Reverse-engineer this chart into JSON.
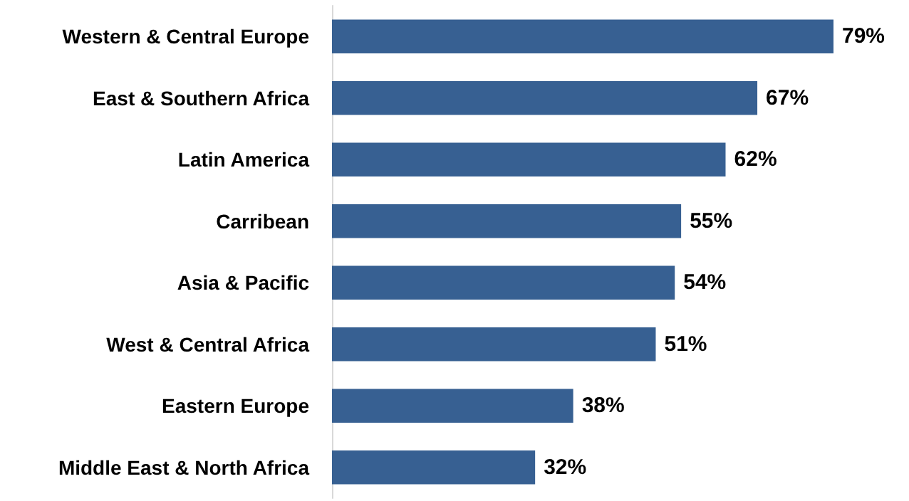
{
  "chart_data": {
    "type": "bar",
    "orientation": "horizontal",
    "categories": [
      "Western & Central Europe",
      "East & Southern Africa",
      "Latin America",
      "Carribean",
      "Asia & Pacific",
      "West & Central Africa",
      "Eastern Europe",
      "Middle East & North Africa"
    ],
    "values": [
      79,
      67,
      62,
      55,
      54,
      51,
      38,
      32
    ],
    "value_labels": [
      "79%",
      "67%",
      "62%",
      "55%",
      "54%",
      "51%",
      "38%",
      "32%"
    ],
    "color": "#376092"
  }
}
